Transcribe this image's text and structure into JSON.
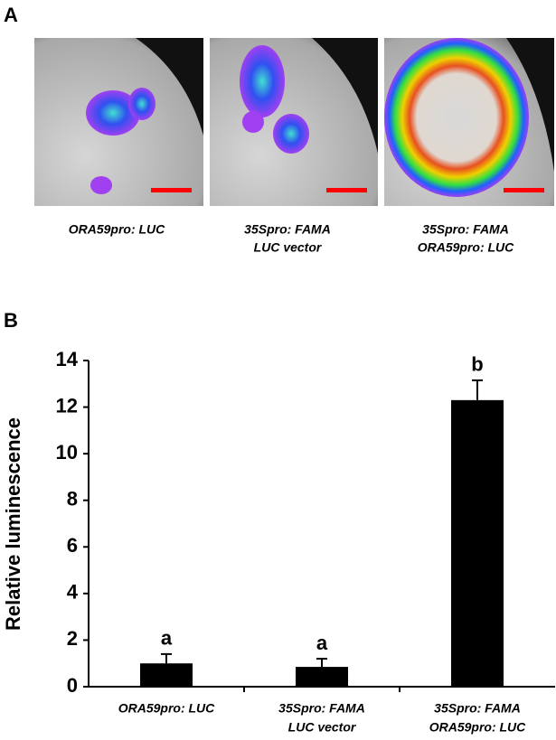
{
  "panel_a": {
    "label": "A",
    "captions": [
      [
        "ORA59pro: LUC"
      ],
      [
        "35Spro: FAMA",
        "LUC vector"
      ],
      [
        "35Spro: FAMA",
        "ORA59pro: LUC"
      ]
    ]
  },
  "panel_b_label": "B",
  "chart_data": {
    "type": "bar",
    "ylabel": "Relative luminescence",
    "categories": [
      [
        "ORA59pro: LUC"
      ],
      [
        "35Spro: FAMA",
        "LUC vector"
      ],
      [
        "35Spro: FAMA",
        "ORA59pro: LUC"
      ]
    ],
    "values": [
      1.0,
      0.85,
      12.3
    ],
    "errors": [
      0.4,
      0.35,
      0.85
    ],
    "significance_labels": [
      "a",
      "a",
      "b"
    ],
    "color": "#000000",
    "ylim": [
      0,
      14
    ],
    "yticks": [
      0,
      2,
      4,
      6,
      8,
      10,
      12,
      14
    ],
    "grid": false
  }
}
